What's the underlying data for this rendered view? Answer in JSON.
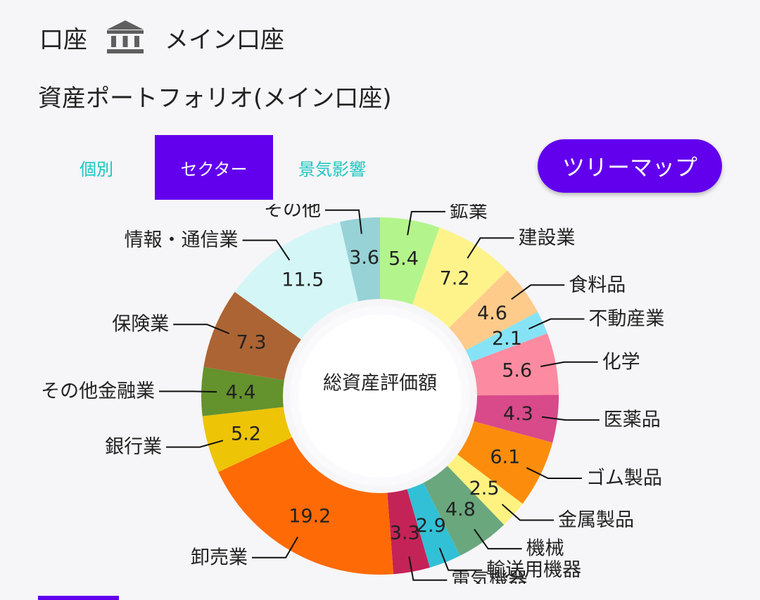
{
  "header": {
    "label": "口座",
    "account_name": "メイン口座",
    "icon": "bank-icon"
  },
  "page_title": "資産ポートフォリオ(メイン口座)",
  "tabs": [
    {
      "label": "個別",
      "selected": false
    },
    {
      "label": "セクター",
      "selected": true
    },
    {
      "label": "景気影響",
      "selected": false
    }
  ],
  "treemap_button": {
    "label": "ツリーマップ"
  },
  "colors": {
    "accent": "#6200ee",
    "tab_text": "#1ec6c0",
    "background": "#f6f5f7"
  },
  "chart_data": {
    "type": "pie",
    "center_label": "総資産評価額",
    "slices": [
      {
        "name": "鉱業",
        "value": 5.4,
        "color": "#b3f58c"
      },
      {
        "name": "建設業",
        "value": 7.2,
        "color": "#fef38b"
      },
      {
        "name": "食料品",
        "value": 4.6,
        "color": "#fecb8b"
      },
      {
        "name": "不動産業",
        "value": 2.1,
        "color": "#86e3f6"
      },
      {
        "name": "化学",
        "value": 5.6,
        "color": "#fc8aa0"
      },
      {
        "name": "医薬品",
        "value": 4.3,
        "color": "#d84a8a"
      },
      {
        "name": "ゴム製品",
        "value": 6.1,
        "color": "#fc8d0c"
      },
      {
        "name": "金属製品",
        "value": 2.5,
        "color": "#fff280"
      },
      {
        "name": "機械",
        "value": 4.8,
        "color": "#6aa77d"
      },
      {
        "name": "輸送用機器",
        "value": 2.9,
        "color": "#32c0d6"
      },
      {
        "name": "電気機器",
        "value": 3.3,
        "color": "#c42357"
      },
      {
        "name": "卸売業",
        "value": 19.2,
        "color": "#fe6a06"
      },
      {
        "name": "銀行業",
        "value": 5.2,
        "color": "#eec407"
      },
      {
        "name": "その他金融業",
        "value": 4.4,
        "color": "#64922c"
      },
      {
        "name": "保険業",
        "value": 7.3,
        "color": "#ac6434"
      },
      {
        "name": "情報・通信業",
        "value": 11.5,
        "color": "#d4f6f6"
      },
      {
        "name": "その他",
        "value": 3.6,
        "color": "#97d2d6"
      }
    ]
  }
}
